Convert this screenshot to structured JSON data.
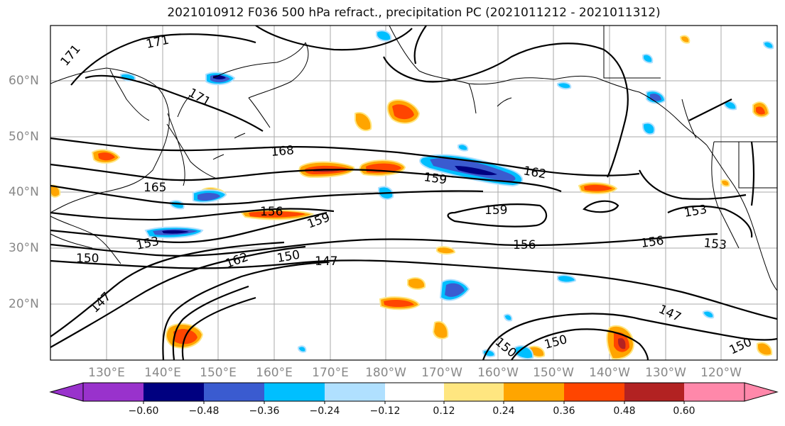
{
  "title": "2021010912 F036 500 hPa refract., precipitation PC (2021011212 - 2021011312)",
  "latitude_labels": [
    "60°N",
    "50°N",
    "40°N",
    "30°N",
    "20°N"
  ],
  "longitude_labels": [
    "130°E",
    "140°E",
    "150°E",
    "160°E",
    "170°E",
    "180°W",
    "170°W",
    "160°W",
    "150°W",
    "140°W",
    "130°W",
    "120°W"
  ],
  "contour_labels": [
    "171",
    "171",
    "171",
    "168",
    "165",
    "162",
    "159",
    "159",
    "159",
    "156",
    "156",
    "156",
    "153",
    "153",
    "153",
    "150",
    "150",
    "150",
    "147",
    "147",
    "147",
    "162",
    "150",
    "150"
  ],
  "colorbar": {
    "ticks": [
      "−0.60",
      "−0.48",
      "−0.36",
      "−0.24",
      "−0.12",
      "0.12",
      "0.24",
      "0.36",
      "0.48",
      "0.60"
    ],
    "colors": [
      "#9932cc",
      "#000080",
      "#3a5bd0",
      "#00bfff",
      "#b0e0ff",
      "#ffffff",
      "#ffe680",
      "#ffa500",
      "#ff4500",
      "#b22222",
      "#ff88aa"
    ]
  }
}
